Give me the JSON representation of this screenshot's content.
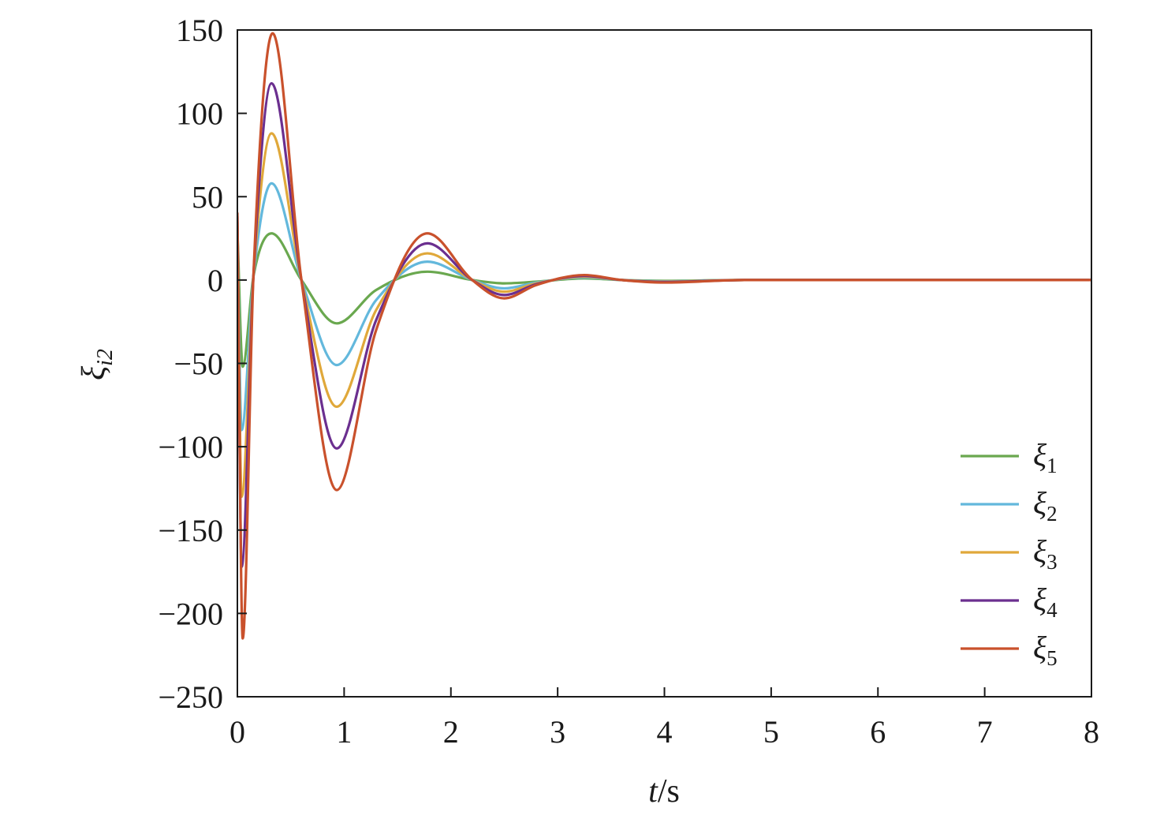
{
  "chart_data": {
    "type": "line",
    "xlabel_var": "t",
    "xlabel_unit": "/s",
    "ylabel_var": "ξ",
    "ylabel_sub": "i2",
    "xlim": [
      0,
      8
    ],
    "ylim": [
      -250,
      150
    ],
    "xticks": [
      0,
      1,
      2,
      3,
      4,
      5,
      6,
      7,
      8
    ],
    "yticks": [
      150,
      100,
      50,
      0,
      -50,
      -100,
      -150,
      -200,
      -250
    ],
    "xtick_labels": [
      "0",
      "1",
      "2",
      "3",
      "4",
      "5",
      "6",
      "7",
      "8"
    ],
    "ytick_labels": [
      "150",
      "100",
      "50",
      "0",
      "−50",
      "−100",
      "−150",
      "−200",
      "−250"
    ],
    "grid": false,
    "legend_position": "bottom-right",
    "series": [
      {
        "name": "ξ",
        "sub": "1",
        "color": "#6aa84f",
        "x": [
          0,
          0.05,
          0.15,
          0.32,
          0.6,
          0.93,
          1.3,
          1.78,
          2.2,
          2.5,
          2.8,
          3.25,
          3.6,
          4.0,
          4.75,
          5.5,
          8.0
        ],
        "y": [
          30,
          -52,
          2,
          28,
          0,
          -26,
          -6,
          5,
          0,
          -2,
          -1,
          1,
          0,
          -0.5,
          0,
          0,
          0
        ]
      },
      {
        "name": "ξ",
        "sub": "2",
        "color": "#63b8dc",
        "x": [
          0,
          0.04,
          0.15,
          0.32,
          0.6,
          0.93,
          1.3,
          1.78,
          2.2,
          2.5,
          2.8,
          3.25,
          3.6,
          4.0,
          4.75,
          5.5,
          8.0
        ],
        "y": [
          30,
          -90,
          2,
          58,
          0,
          -51,
          -12,
          11,
          0,
          -5,
          -1.5,
          1.5,
          0,
          -0.8,
          0,
          0,
          0
        ]
      },
      {
        "name": "ξ",
        "sub": "3",
        "color": "#e0a83a",
        "x": [
          0,
          0.04,
          0.15,
          0.32,
          0.6,
          0.93,
          1.3,
          1.78,
          2.2,
          2.5,
          2.8,
          3.25,
          3.6,
          4.0,
          4.75,
          5.5,
          8.0
        ],
        "y": [
          35,
          -130,
          2,
          88,
          0,
          -76,
          -18,
          16,
          0,
          -7,
          -2,
          2,
          0,
          -1,
          0,
          0,
          0
        ]
      },
      {
        "name": "ξ",
        "sub": "4",
        "color": "#6b2f8f",
        "x": [
          0,
          0.04,
          0.15,
          0.32,
          0.6,
          0.93,
          1.3,
          1.78,
          2.2,
          2.5,
          2.8,
          3.25,
          3.6,
          4.0,
          4.75,
          5.5,
          8.0
        ],
        "y": [
          38,
          -172,
          2,
          118,
          0,
          -101,
          -24,
          22,
          0,
          -9,
          -2.5,
          2.5,
          0,
          -1.2,
          0,
          0,
          0
        ]
      },
      {
        "name": "ξ",
        "sub": "5",
        "color": "#c9512c",
        "x": [
          0,
          0.05,
          0.15,
          0.33,
          0.6,
          0.93,
          1.3,
          1.78,
          2.2,
          2.5,
          2.8,
          3.25,
          3.6,
          4.0,
          4.75,
          5.5,
          8.0
        ],
        "y": [
          40,
          -215,
          2,
          148,
          0,
          -126,
          -30,
          28,
          0,
          -11,
          -3,
          3,
          0,
          -1.5,
          0,
          0,
          0
        ]
      }
    ]
  }
}
